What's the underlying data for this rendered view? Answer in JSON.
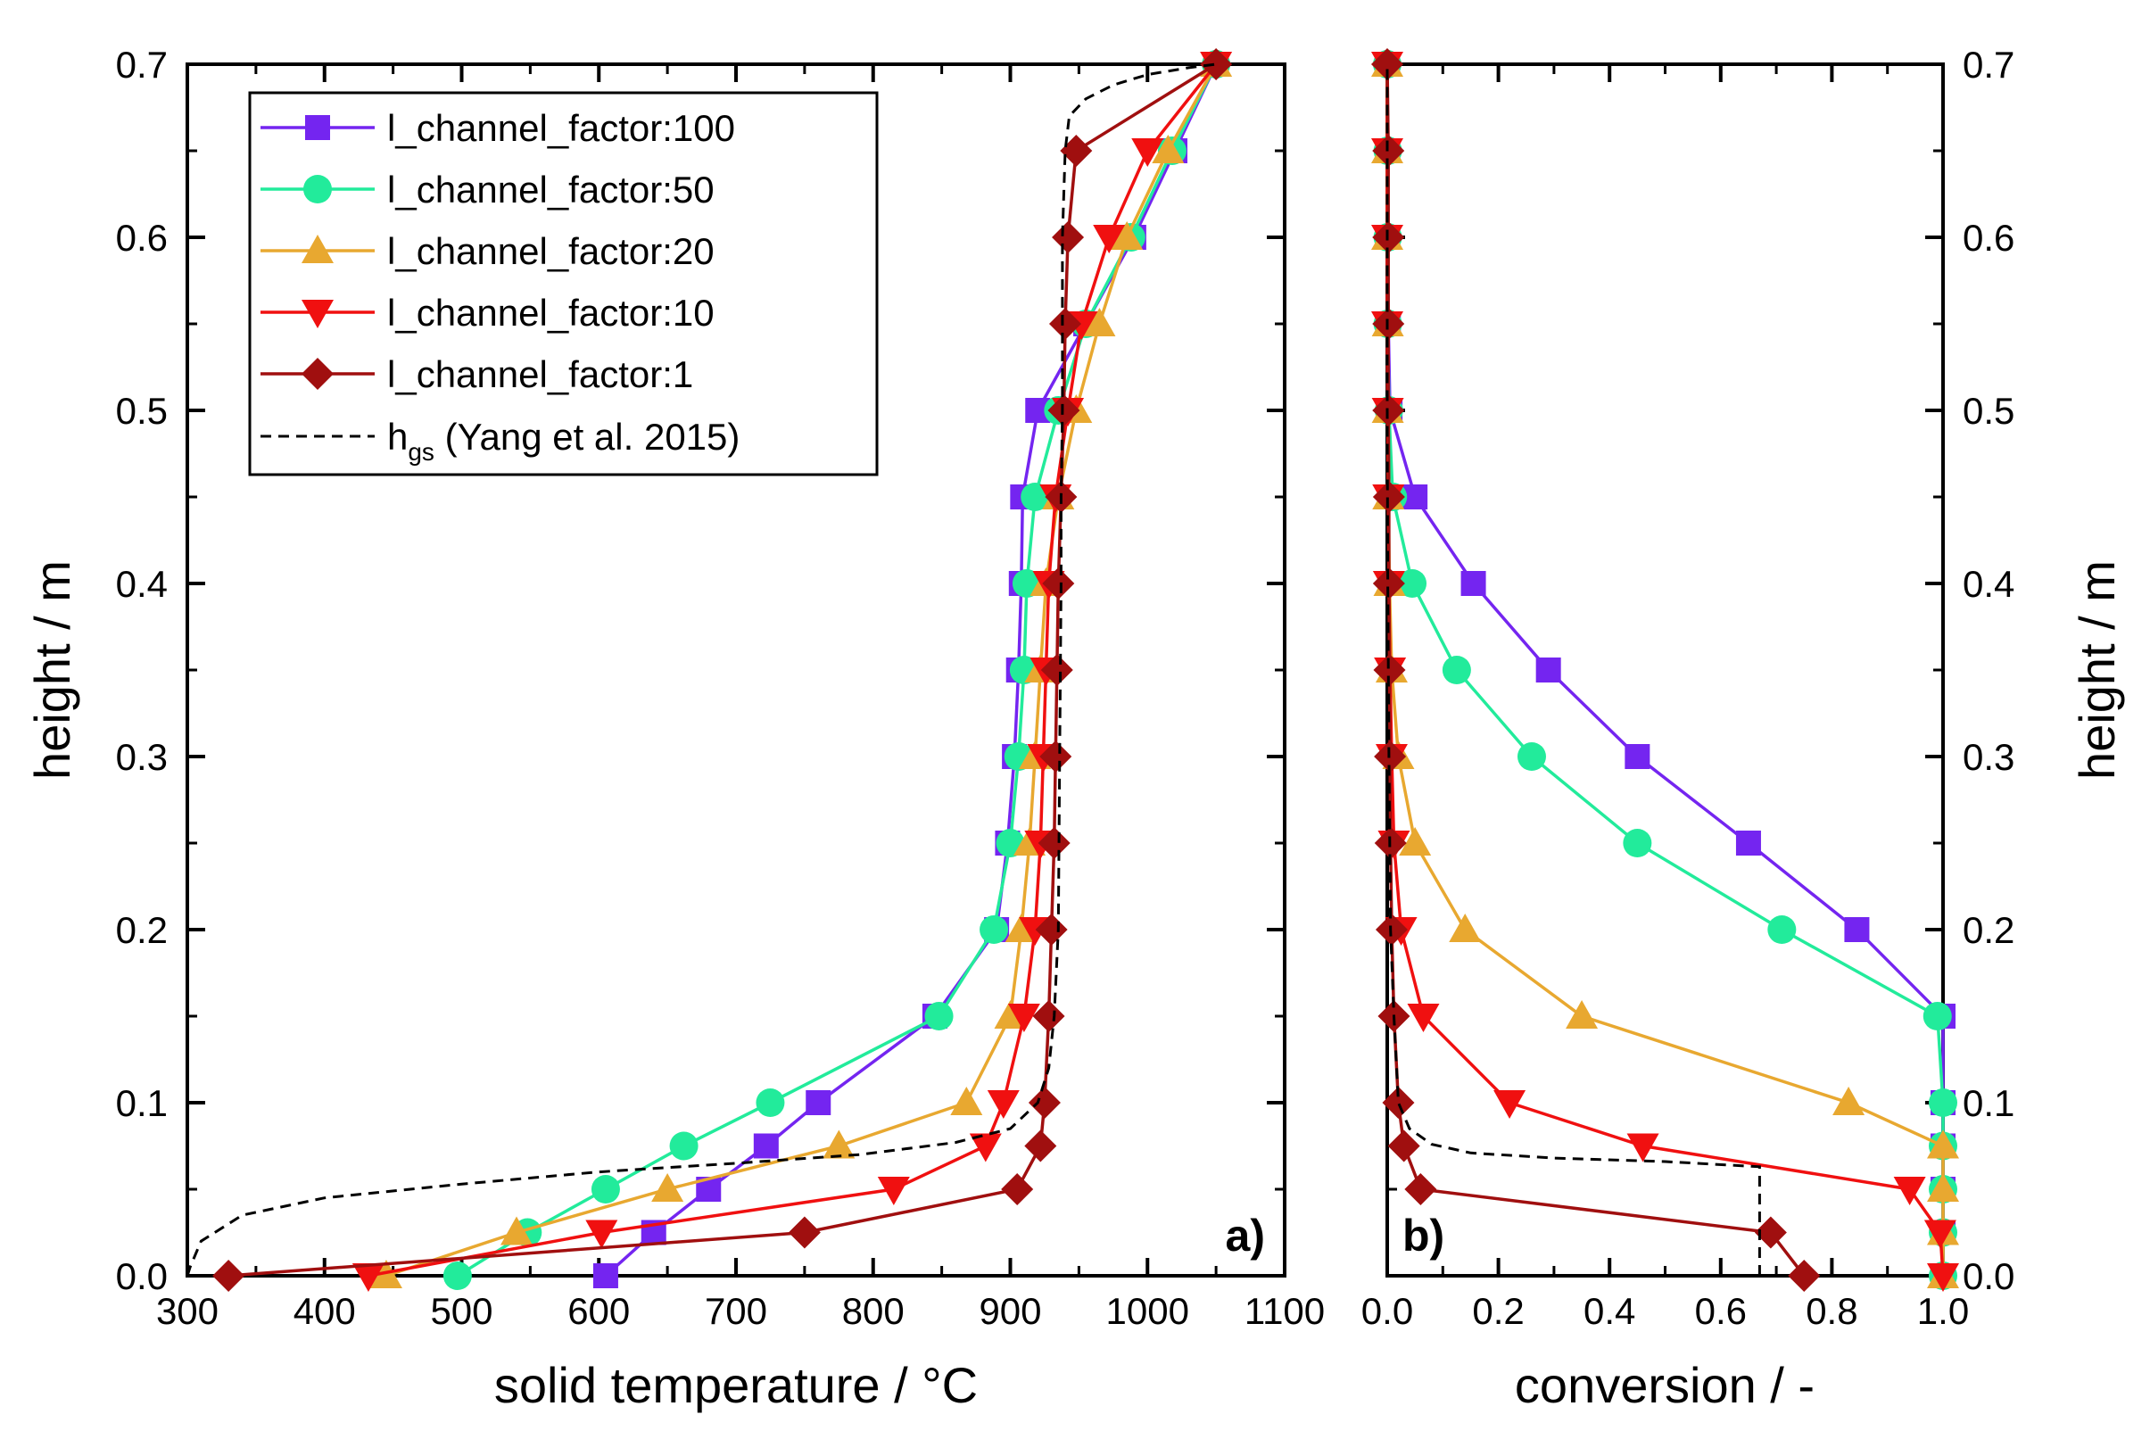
{
  "chart_data": [
    {
      "id": "a",
      "type": "line",
      "panel_label": "a)",
      "xlabel": "solid temperature / °C",
      "ylabel": "height / m",
      "xlim": [
        300,
        1100
      ],
      "ylim": [
        0.0,
        0.7
      ],
      "xticks": [
        300,
        400,
        500,
        600,
        700,
        800,
        900,
        1000,
        1100
      ],
      "yticks": [
        0.0,
        0.1,
        0.2,
        0.3,
        0.4,
        0.5,
        0.6,
        0.7
      ],
      "xtick_labels": [
        "300",
        "400",
        "500",
        "600",
        "700",
        "800",
        "900",
        "1000",
        "1100"
      ],
      "ytick_labels": [
        "0.0",
        "0.1",
        "0.2",
        "0.3",
        "0.4",
        "0.5",
        "0.6",
        "0.7"
      ],
      "legend_position": "top-left",
      "series": [
        {
          "name": "l_channel_factor:100",
          "color": "#7425F0",
          "marker": "square",
          "points": [
            [
              605,
              0
            ],
            [
              640,
              0.025
            ],
            [
              680,
              0.05
            ],
            [
              722,
              0.075
            ],
            [
              760,
              0.1
            ],
            [
              845,
              0.15
            ],
            [
              890,
              0.2
            ],
            [
              898,
              0.25
            ],
            [
              903,
              0.3
            ],
            [
              906,
              0.35
            ],
            [
              908,
              0.4
            ],
            [
              909,
              0.45
            ],
            [
              920,
              0.5
            ],
            [
              955,
              0.55
            ],
            [
              990,
              0.6
            ],
            [
              1020,
              0.65
            ],
            [
              1050,
              0.7
            ]
          ]
        },
        {
          "name": "l_channel_factor:50",
          "color": "#22EB9B",
          "marker": "circle",
          "points": [
            [
              497,
              0
            ],
            [
              548,
              0.025
            ],
            [
              605,
              0.05
            ],
            [
              662,
              0.075
            ],
            [
              725,
              0.1
            ],
            [
              848,
              0.15
            ],
            [
              888,
              0.2
            ],
            [
              900,
              0.25
            ],
            [
              906,
              0.3
            ],
            [
              910,
              0.35
            ],
            [
              912,
              0.4
            ],
            [
              918,
              0.45
            ],
            [
              935,
              0.5
            ],
            [
              955,
              0.55
            ],
            [
              988,
              0.6
            ],
            [
              1018,
              0.65
            ],
            [
              1050,
              0.7
            ]
          ]
        },
        {
          "name": "l_channel_factor:20",
          "color": "#E8A830",
          "marker": "triangle-up",
          "points": [
            [
              445,
              0
            ],
            [
              540,
              0.025
            ],
            [
              650,
              0.05
            ],
            [
              775,
              0.075
            ],
            [
              868,
              0.1
            ],
            [
              900,
              0.15
            ],
            [
              908,
              0.2
            ],
            [
              914,
              0.25
            ],
            [
              918,
              0.3
            ],
            [
              922,
              0.35
            ],
            [
              926,
              0.4
            ],
            [
              935,
              0.45
            ],
            [
              948,
              0.5
            ],
            [
              965,
              0.55
            ],
            [
              985,
              0.6
            ],
            [
              1015,
              0.65
            ],
            [
              1050,
              0.7
            ]
          ]
        },
        {
          "name": "l_channel_factor:10",
          "color": "#F01010",
          "marker": "triangle-down",
          "points": [
            [
              432,
              0
            ],
            [
              602,
              0.025
            ],
            [
              815,
              0.05
            ],
            [
              882,
              0.075
            ],
            [
              895,
              0.1
            ],
            [
              910,
              0.15
            ],
            [
              918,
              0.2
            ],
            [
              922,
              0.25
            ],
            [
              924,
              0.3
            ],
            [
              926,
              0.35
            ],
            [
              928,
              0.4
            ],
            [
              933,
              0.45
            ],
            [
              942,
              0.5
            ],
            [
              952,
              0.55
            ],
            [
              972,
              0.6
            ],
            [
              1000,
              0.65
            ],
            [
              1050,
              0.7
            ]
          ]
        },
        {
          "name": "l_channel_factor:1",
          "color": "#A00F0F",
          "marker": "diamond",
          "points": [
            [
              330,
              0
            ],
            [
              750,
              0.025
            ],
            [
              905,
              0.05
            ],
            [
              922,
              0.075
            ],
            [
              925,
              0.1
            ],
            [
              928,
              0.15
            ],
            [
              930,
              0.2
            ],
            [
              932,
              0.25
            ],
            [
              933,
              0.3
            ],
            [
              934,
              0.35
            ],
            [
              935,
              0.4
            ],
            [
              937,
              0.45
            ],
            [
              939,
              0.5
            ],
            [
              940,
              0.55
            ],
            [
              942,
              0.6
            ],
            [
              948,
              0.65
            ],
            [
              1050,
              0.7
            ]
          ]
        },
        {
          "name": "h_gs (Yang et al. 2015)",
          "color": "#000000",
          "marker": "none",
          "dashed": true,
          "points": [
            [
              300,
              0
            ],
            [
              302,
              0.005
            ],
            [
              310,
              0.02
            ],
            [
              340,
              0.035
            ],
            [
              400,
              0.045
            ],
            [
              500,
              0.053
            ],
            [
              600,
              0.06
            ],
            [
              700,
              0.065
            ],
            [
              790,
              0.07
            ],
            [
              860,
              0.077
            ],
            [
              900,
              0.085
            ],
            [
              920,
              0.1
            ],
            [
              928,
              0.12
            ],
            [
              932,
              0.15
            ],
            [
              935,
              0.2
            ],
            [
              936,
              0.3
            ],
            [
              937,
              0.4
            ],
            [
              937,
              0.45
            ],
            [
              938,
              0.5
            ],
            [
              938,
              0.55
            ],
            [
              938,
              0.6
            ],
            [
              940,
              0.65
            ],
            [
              943,
              0.67
            ],
            [
              955,
              0.68
            ],
            [
              975,
              0.688
            ],
            [
              1000,
              0.694
            ],
            [
              1030,
              0.698
            ],
            [
              1050,
              0.7
            ]
          ]
        }
      ]
    },
    {
      "id": "b",
      "type": "line",
      "panel_label": "b)",
      "xlabel": "conversion / -",
      "ylabel": "height / m",
      "xlim": [
        0.0,
        1.0
      ],
      "ylim": [
        0.0,
        0.7
      ],
      "xticks": [
        0.0,
        0.2,
        0.4,
        0.6,
        0.8,
        1.0
      ],
      "yticks": [
        0.0,
        0.1,
        0.2,
        0.3,
        0.4,
        0.5,
        0.6,
        0.7
      ],
      "xtick_labels": [
        "0.0",
        "0.2",
        "0.4",
        "0.6",
        "0.8",
        "1.0"
      ],
      "ytick_labels": [
        "0.0",
        "0.1",
        "0.2",
        "0.3",
        "0.4",
        "0.5",
        "0.6",
        "0.7"
      ],
      "y_axis_side": "right",
      "series": [
        {
          "name": "l_channel_factor:100",
          "color": "#7425F0",
          "marker": "square",
          "points": [
            [
              1,
              0
            ],
            [
              1,
              0.025
            ],
            [
              1,
              0.05
            ],
            [
              1,
              0.075
            ],
            [
              1,
              0.1
            ],
            [
              1,
              0.15
            ],
            [
              0.845,
              0.2
            ],
            [
              0.65,
              0.25
            ],
            [
              0.45,
              0.3
            ],
            [
              0.29,
              0.35
            ],
            [
              0.155,
              0.4
            ],
            [
              0.05,
              0.45
            ],
            [
              0.005,
              0.5
            ],
            [
              0.002,
              0.55
            ],
            [
              0.001,
              0.6
            ],
            [
              0.001,
              0.65
            ],
            [
              0,
              0.7
            ]
          ]
        },
        {
          "name": "l_channel_factor:50",
          "color": "#22EB9B",
          "marker": "circle",
          "points": [
            [
              1,
              0
            ],
            [
              1,
              0.025
            ],
            [
              1,
              0.05
            ],
            [
              1,
              0.075
            ],
            [
              1,
              0.1
            ],
            [
              0.99,
              0.15
            ],
            [
              0.71,
              0.2
            ],
            [
              0.45,
              0.25
            ],
            [
              0.26,
              0.3
            ],
            [
              0.125,
              0.35
            ],
            [
              0.045,
              0.4
            ],
            [
              0.01,
              0.45
            ],
            [
              0.003,
              0.5
            ],
            [
              0.001,
              0.55
            ],
            [
              0.001,
              0.6
            ],
            [
              0.001,
              0.65
            ],
            [
              0,
              0.7
            ]
          ]
        },
        {
          "name": "l_channel_factor:20",
          "color": "#E8A830",
          "marker": "triangle-up",
          "points": [
            [
              1,
              0
            ],
            [
              1,
              0.025
            ],
            [
              1,
              0.05
            ],
            [
              1,
              0.075
            ],
            [
              0.83,
              0.1
            ],
            [
              0.35,
              0.15
            ],
            [
              0.14,
              0.2
            ],
            [
              0.05,
              0.25
            ],
            [
              0.02,
              0.3
            ],
            [
              0.008,
              0.35
            ],
            [
              0.004,
              0.4
            ],
            [
              0.002,
              0.45
            ],
            [
              0.001,
              0.5
            ],
            [
              0.001,
              0.55
            ],
            [
              0,
              0.6
            ],
            [
              0,
              0.65
            ],
            [
              0,
              0.7
            ]
          ]
        },
        {
          "name": "l_channel_factor:10",
          "color": "#F01010",
          "marker": "triangle-down",
          "points": [
            [
              1,
              0
            ],
            [
              0.995,
              0.025
            ],
            [
              0.94,
              0.05
            ],
            [
              0.46,
              0.075
            ],
            [
              0.22,
              0.1
            ],
            [
              0.065,
              0.15
            ],
            [
              0.025,
              0.2
            ],
            [
              0.012,
              0.25
            ],
            [
              0.008,
              0.3
            ],
            [
              0.005,
              0.35
            ],
            [
              0.003,
              0.4
            ],
            [
              0.002,
              0.45
            ],
            [
              0.001,
              0.5
            ],
            [
              0,
              0.55
            ],
            [
              0,
              0.6
            ],
            [
              0,
              0.65
            ],
            [
              0,
              0.7
            ]
          ]
        },
        {
          "name": "l_channel_factor:1",
          "color": "#A00F0F",
          "marker": "diamond",
          "points": [
            [
              0.75,
              0
            ],
            [
              0.69,
              0.025
            ],
            [
              0.06,
              0.05
            ],
            [
              0.03,
              0.075
            ],
            [
              0.02,
              0.1
            ],
            [
              0.012,
              0.15
            ],
            [
              0.008,
              0.2
            ],
            [
              0.006,
              0.25
            ],
            [
              0.005,
              0.3
            ],
            [
              0.004,
              0.35
            ],
            [
              0.003,
              0.4
            ],
            [
              0.003,
              0.45
            ],
            [
              0.002,
              0.5
            ],
            [
              0.002,
              0.55
            ],
            [
              0.002,
              0.6
            ],
            [
              0.002,
              0.65
            ],
            [
              0,
              0.7
            ]
          ]
        },
        {
          "name": "h_gs (Yang et al. 2015)",
          "color": "#000000",
          "marker": "none",
          "dashed": true,
          "points": [
            [
              0.67,
              0
            ],
            [
              0.67,
              0.063
            ],
            [
              0.5,
              0.066
            ],
            [
              0.3,
              0.068
            ],
            [
              0.15,
              0.071
            ],
            [
              0.08,
              0.076
            ],
            [
              0.04,
              0.085
            ],
            [
              0.02,
              0.1
            ],
            [
              0.012,
              0.15
            ],
            [
              0.006,
              0.2
            ],
            [
              0.003,
              0.3
            ],
            [
              0.001,
              0.4
            ],
            [
              0,
              0.5
            ],
            [
              0,
              0.7
            ]
          ]
        }
      ]
    }
  ],
  "legend": {
    "entries": [
      {
        "label": "l_channel_factor:100",
        "color": "#7425F0",
        "marker": "square"
      },
      {
        "label": "l_channel_factor:50",
        "color": "#22EB9B",
        "marker": "circle"
      },
      {
        "label": "l_channel_factor:20",
        "color": "#E8A830",
        "marker": "triangle-up"
      },
      {
        "label": "l_channel_factor:10",
        "color": "#F01010",
        "marker": "triangle-down"
      },
      {
        "label": "l_channel_factor:1",
        "color": "#A00F0F",
        "marker": "diamond"
      }
    ],
    "dashed_entry": {
      "label_main": "h",
      "label_sub": "gs",
      "label_rest": " (Yang et al. 2015)",
      "color": "#000000"
    }
  }
}
